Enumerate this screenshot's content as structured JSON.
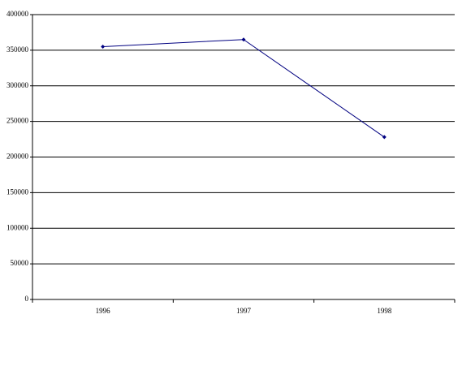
{
  "chart_data": {
    "type": "line",
    "categories": [
      "1996",
      "1997",
      "1998"
    ],
    "values": [
      355000,
      365000,
      228000
    ],
    "color": "#000080",
    "ylim": [
      0,
      400000
    ],
    "yticks": [
      0,
      50000,
      100000,
      150000,
      200000,
      250000,
      300000,
      350000,
      400000
    ],
    "grid": true
  }
}
